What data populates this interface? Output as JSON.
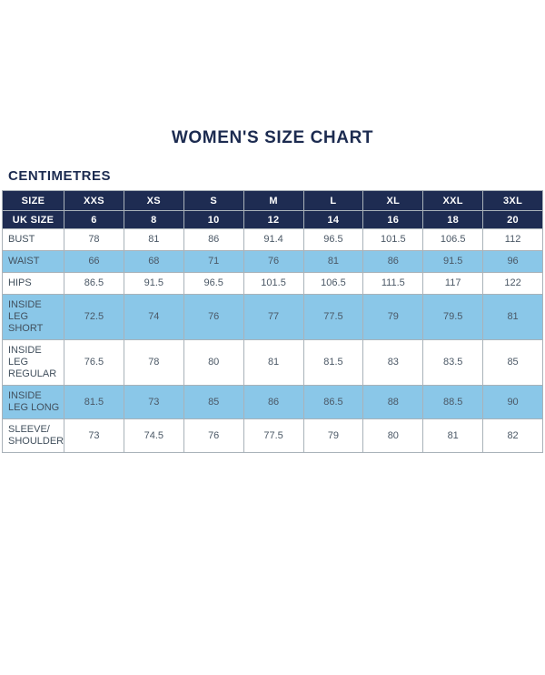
{
  "page": {
    "title": "WOMEN'S SIZE CHART",
    "unit_label": "CENTIMETRES"
  },
  "colors": {
    "navy_header": "#1e2c52",
    "light_blue_row": "#8ac7e8",
    "heading_text": "#1c2b50",
    "body_text": "#4b5866",
    "grid_border": "#a9b2b9"
  },
  "chart_data": {
    "type": "table",
    "title": "WOMEN'S SIZE CHART",
    "unit": "CENTIMETRES",
    "columns": [
      "SIZE",
      "XXS",
      "XS",
      "S",
      "M",
      "L",
      "XL",
      "XXL",
      "3XL"
    ],
    "uk_size_row": {
      "label": "UK SIZE",
      "values": [
        "6",
        "8",
        "10",
        "12",
        "14",
        "16",
        "18",
        "20"
      ]
    },
    "rows": [
      {
        "label": "BUST",
        "values": [
          "78",
          "81",
          "86",
          "91.4",
          "96.5",
          "101.5",
          "106.5",
          "112"
        ]
      },
      {
        "label": "WAIST",
        "values": [
          "66",
          "68",
          "71",
          "76",
          "81",
          "86",
          "91.5",
          "96"
        ]
      },
      {
        "label": "HIPS",
        "values": [
          "86.5",
          "91.5",
          "96.5",
          "101.5",
          "106.5",
          "111.5",
          "117",
          "122"
        ]
      },
      {
        "label": "INSIDE LEG SHORT",
        "values": [
          "72.5",
          "74",
          "76",
          "77",
          "77.5",
          "79",
          "79.5",
          "81"
        ]
      },
      {
        "label": "INSIDE LEG REGULAR",
        "values": [
          "76.5",
          "78",
          "80",
          "81",
          "81.5",
          "83",
          "83.5",
          "85"
        ]
      },
      {
        "label": "INSIDE LEG LONG",
        "values": [
          "81.5",
          "73",
          "85",
          "86",
          "86.5",
          "88",
          "88.5",
          "90"
        ]
      },
      {
        "label": "SLEEVE/ SHOULDER",
        "values": [
          "73",
          "74.5",
          "76",
          "77.5",
          "79",
          "80",
          "81",
          "82"
        ]
      }
    ],
    "layout": {
      "alternating_row_fill": [
        "white",
        "light_blue"
      ],
      "header_fill": "navy",
      "grid": true
    }
  }
}
